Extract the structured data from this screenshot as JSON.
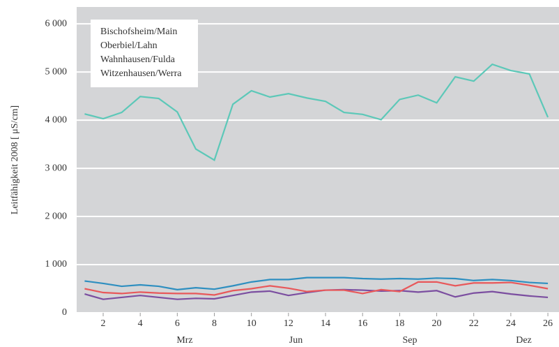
{
  "chart_data": {
    "type": "line",
    "y_label": "Leitfähigkeit 2008 [ μS/cm]",
    "x": [
      1,
      2,
      3,
      4,
      5,
      6,
      7,
      8,
      9,
      10,
      11,
      12,
      13,
      14,
      15,
      16,
      17,
      18,
      19,
      20,
      21,
      22,
      23,
      24,
      25,
      26
    ],
    "xlim": [
      0.57,
      26.6
    ],
    "xticks": [
      2,
      4,
      6,
      8,
      10,
      12,
      14,
      16,
      18,
      20,
      22,
      24,
      26
    ],
    "month_labels": [
      {
        "value": 6.4,
        "label": "Mrz"
      },
      {
        "value": 12.4,
        "label": "Jun"
      },
      {
        "value": 18.55,
        "label": "Sep"
      },
      {
        "value": 24.7,
        "label": "Dez"
      }
    ],
    "ylim": [
      0,
      6350
    ],
    "yticks": [
      0,
      {
        "value": 1000,
        "label": "1 000"
      },
      {
        "value": 2000,
        "label": "2 000"
      },
      {
        "value": 3000,
        "label": "3 000"
      },
      {
        "value": 4000,
        "label": "4 000"
      },
      {
        "value": 5000,
        "label": "5 000"
      },
      {
        "value": 6000,
        "label": "6 000"
      }
    ],
    "grid": true,
    "series": [
      {
        "name": "Bischofsheim/Main",
        "color": "#2e8fc0",
        "values": [
          660,
          610,
          550,
          580,
          550,
          480,
          520,
          490,
          560,
          640,
          690,
          690,
          730,
          730,
          730,
          710,
          700,
          710,
          700,
          720,
          710,
          670,
          690,
          670,
          630,
          610
        ]
      },
      {
        "name": "Oberbiel/Lahn",
        "color": "#7b4ea0",
        "values": [
          390,
          280,
          320,
          360,
          320,
          280,
          300,
          290,
          360,
          430,
          450,
          360,
          420,
          470,
          480,
          470,
          450,
          460,
          430,
          460,
          330,
          410,
          440,
          390,
          350,
          320
        ]
      },
      {
        "name": "Wahnhausen/Fulda",
        "color": "#e8585a",
        "values": [
          500,
          420,
          400,
          430,
          410,
          400,
          400,
          370,
          460,
          500,
          560,
          510,
          440,
          470,
          470,
          400,
          480,
          440,
          640,
          640,
          560,
          620,
          620,
          630,
          570,
          500
        ]
      },
      {
        "name": "Witzenhausen/Werra",
        "color": "#5cc8b8",
        "values": [
          4130,
          4030,
          4160,
          4490,
          4450,
          4170,
          3400,
          3170,
          4330,
          4610,
          4480,
          4550,
          4460,
          4390,
          4160,
          4120,
          4010,
          4430,
          4520,
          4360,
          4900,
          4810,
          5160,
          5030,
          4960,
          4060
        ]
      }
    ]
  }
}
